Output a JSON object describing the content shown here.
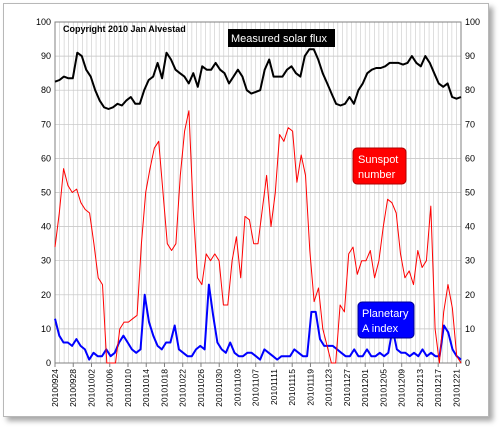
{
  "chart_data": {
    "type": "line",
    "title": "",
    "copyright": "Copyright 2010 Jan Alvestad",
    "xlabel": "",
    "ylabel": "",
    "ylim": [
      0,
      100
    ],
    "yticks": [
      0,
      10,
      20,
      30,
      40,
      50,
      60,
      70,
      80,
      90,
      100
    ],
    "grid": true,
    "x_start": "2010-09-24",
    "x_end": "2010-12-22",
    "x_tick_labels": [
      "20100924",
      "20100928",
      "20101002",
      "20101006",
      "20101010",
      "20101014",
      "20101018",
      "20101022",
      "20101026",
      "20101030",
      "20101103",
      "20101107",
      "20101111",
      "20101115",
      "20101119",
      "20101123",
      "20101127",
      "20101201",
      "20101205",
      "20101209",
      "20101213",
      "20101217",
      "20101221"
    ],
    "annotations": [
      {
        "text": "Measured solar flux",
        "series": "Measured solar flux",
        "background": "#000000",
        "color": "#ffffff"
      },
      {
        "text_lines": [
          "Sunspot",
          "number"
        ],
        "series": "Sunspot number",
        "background": "#ff0000",
        "color": "#ffffff"
      },
      {
        "text_lines": [
          "Planetary",
          "A index"
        ],
        "series": "Planetary A index",
        "background": "#0000ff",
        "color": "#ffffff"
      }
    ],
    "series": [
      {
        "name": "Measured solar flux",
        "color": "#000000",
        "values": [
          82.5,
          83,
          84,
          83.5,
          83.5,
          91,
          90,
          86,
          84,
          80,
          77,
          75,
          74.5,
          75,
          76,
          75.5,
          77,
          78,
          76,
          76,
          80,
          83,
          84,
          88,
          83.5,
          91,
          89,
          86,
          85,
          84,
          82,
          85,
          81,
          87,
          86,
          86,
          88,
          86,
          85,
          82,
          84,
          86,
          84,
          80,
          79,
          79.5,
          80,
          86,
          89,
          84,
          84,
          84,
          86,
          87,
          85,
          84,
          90,
          92,
          92,
          89,
          85,
          82,
          79,
          76,
          75.5,
          76,
          78,
          76,
          80,
          82,
          85,
          86,
          86.5,
          86.5,
          87,
          88,
          88,
          88,
          87.5,
          88,
          90,
          88,
          87,
          90,
          88,
          85,
          82,
          81,
          82,
          78,
          77.5,
          78
        ]
      },
      {
        "name": "Sunspot number",
        "color": "#ff0000",
        "values": [
          34,
          44,
          57,
          52,
          50,
          51,
          47,
          45,
          44,
          35,
          25,
          23,
          0,
          0,
          0,
          10,
          12,
          12,
          13,
          14,
          35,
          50,
          57,
          63,
          65,
          50,
          35,
          33,
          35,
          55,
          68,
          74,
          45,
          25,
          23,
          32,
          30,
          32,
          30,
          17,
          17,
          30,
          37,
          25,
          43,
          42,
          35,
          35,
          45,
          55,
          40,
          50,
          67,
          65,
          69,
          68,
          53,
          61,
          55,
          33,
          18,
          22,
          10,
          5,
          0,
          0,
          17,
          15,
          32,
          34,
          26,
          30,
          30,
          33,
          25,
          30,
          40,
          48,
          47,
          44,
          32,
          25,
          27,
          23,
          33,
          28,
          30,
          46,
          10,
          0,
          15,
          23,
          16,
          2,
          0
        ]
      },
      {
        "name": "Planetary A index",
        "color": "#0000ff",
        "values": [
          13,
          8,
          6,
          6,
          5,
          7,
          5,
          4,
          1,
          3,
          2,
          2,
          4,
          2,
          3,
          6,
          8,
          6,
          4,
          3,
          4,
          20,
          12,
          8,
          5,
          4,
          6,
          6,
          11,
          4,
          3,
          2,
          2,
          4,
          5,
          4,
          23,
          14,
          6,
          4,
          3,
          6,
          3,
          2,
          2,
          3,
          3,
          2,
          1,
          4,
          3,
          2,
          1,
          2,
          2,
          2,
          4,
          3,
          2,
          2,
          15,
          15,
          7,
          5,
          5,
          5,
          4,
          3,
          2,
          2,
          4,
          2,
          2,
          4,
          2,
          2,
          3,
          2,
          3,
          10,
          4,
          3,
          3,
          2,
          3,
          2,
          4,
          2,
          3,
          2,
          2,
          11,
          9,
          4,
          2,
          1
        ]
      }
    ]
  }
}
